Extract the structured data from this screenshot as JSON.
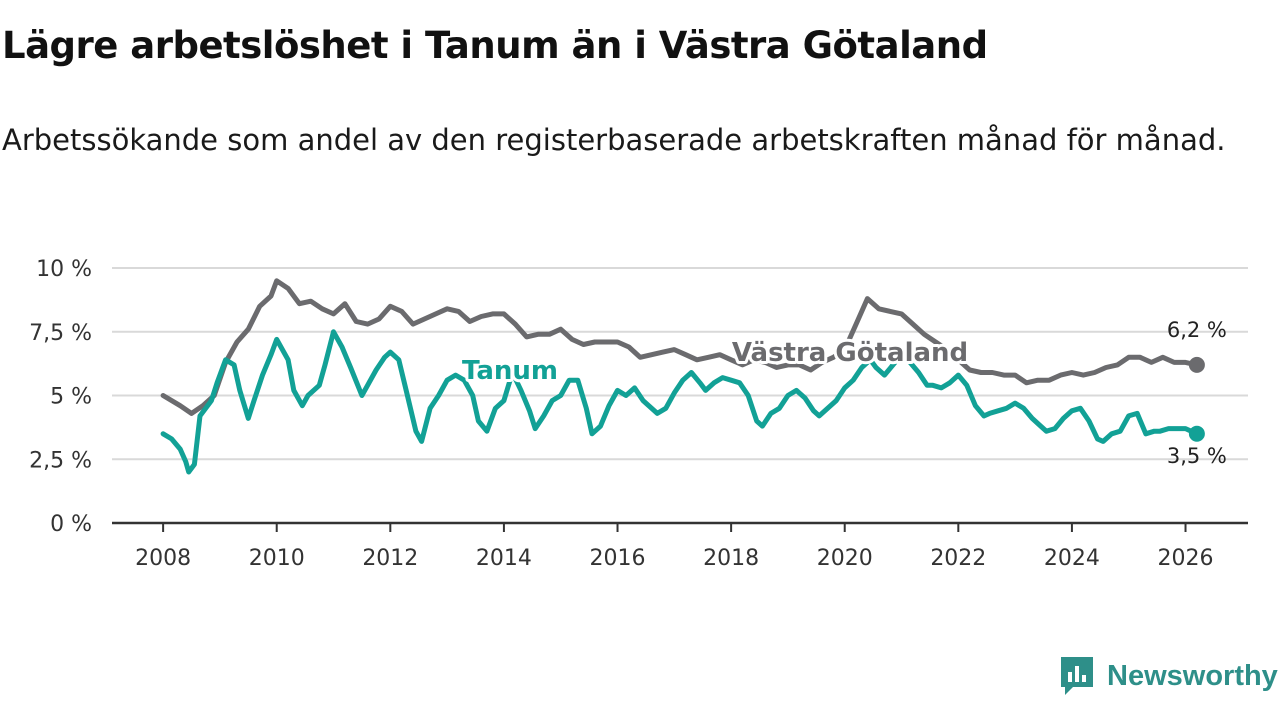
{
  "header": {
    "title": "Lägre arbetslöshet i Tanum än i Västra Götaland",
    "subtitle": "Arbetssökande som andel av den registerbaserade arbetskraften månad för månad."
  },
  "brand": {
    "name": "Newsworthy",
    "color": "#2e8f89"
  },
  "chart_data": {
    "type": "line",
    "title": "Lägre arbetslöshet i Tanum än i Västra Götaland",
    "subtitle": "Arbetssökande som andel av den registerbaserade arbetskraften månad för månad.",
    "xlabel": "",
    "ylabel": "",
    "xlim": [
      2007.1,
      2027.1
    ],
    "ylim": [
      0,
      10
    ],
    "grid": true,
    "x_ticks": [
      2008,
      2010,
      2012,
      2014,
      2016,
      2018,
      2020,
      2022,
      2024,
      2026
    ],
    "x_tick_labels": [
      "2008",
      "2010",
      "2012",
      "2014",
      "2016",
      "2018",
      "2020",
      "2022",
      "2024",
      "2026"
    ],
    "y_ticks": [
      0,
      2.5,
      5,
      7.5,
      10
    ],
    "y_tick_labels": [
      "0 %",
      "2,5 %",
      "5 %",
      "7,5 %",
      "10 %"
    ],
    "series": [
      {
        "name": "Västra Götaland",
        "label": "Västra Götaland",
        "color": "#6b6b6e",
        "end_label": "6,2 %",
        "x": [
          2008.0,
          2008.3,
          2008.5,
          2008.7,
          2008.9,
          2009.1,
          2009.3,
          2009.5,
          2009.7,
          2009.9,
          2010.0,
          2010.2,
          2010.4,
          2010.6,
          2010.8,
          2011.0,
          2011.2,
          2011.4,
          2011.6,
          2011.8,
          2012.0,
          2012.2,
          2012.4,
          2012.6,
          2012.8,
          2013.0,
          2013.2,
          2013.4,
          2013.6,
          2013.8,
          2014.0,
          2014.2,
          2014.4,
          2014.6,
          2014.8,
          2015.0,
          2015.2,
          2015.4,
          2015.6,
          2015.8,
          2016.0,
          2016.2,
          2016.4,
          2016.6,
          2016.8,
          2017.0,
          2017.2,
          2017.4,
          2017.6,
          2017.8,
          2018.0,
          2018.2,
          2018.4,
          2018.6,
          2018.8,
          2019.0,
          2019.2,
          2019.4,
          2019.6,
          2019.8,
          2020.0,
          2020.2,
          2020.4,
          2020.6,
          2020.8,
          2021.0,
          2021.2,
          2021.4,
          2021.6,
          2021.8,
          2022.0,
          2022.2,
          2022.4,
          2022.6,
          2022.8,
          2023.0,
          2023.2,
          2023.4,
          2023.6,
          2023.8,
          2024.0,
          2024.2,
          2024.4,
          2024.6,
          2024.8,
          2025.0,
          2025.2,
          2025.4,
          2025.6,
          2025.8,
          2026.0,
          2026.2
        ],
        "values": [
          5.0,
          4.6,
          4.3,
          4.6,
          5.0,
          6.3,
          7.1,
          7.6,
          8.5,
          8.9,
          9.5,
          9.2,
          8.6,
          8.7,
          8.4,
          8.2,
          8.6,
          7.9,
          7.8,
          8.0,
          8.5,
          8.3,
          7.8,
          8.0,
          8.2,
          8.4,
          8.3,
          7.9,
          8.1,
          8.2,
          8.2,
          7.8,
          7.3,
          7.4,
          7.4,
          7.6,
          7.2,
          7.0,
          7.1,
          7.1,
          7.1,
          6.9,
          6.5,
          6.6,
          6.7,
          6.8,
          6.6,
          6.4,
          6.5,
          6.6,
          6.4,
          6.2,
          6.4,
          6.3,
          6.1,
          6.2,
          6.2,
          6.0,
          6.3,
          6.5,
          6.8,
          7.8,
          8.8,
          8.4,
          8.3,
          8.2,
          7.8,
          7.4,
          7.1,
          6.8,
          6.4,
          6.0,
          5.9,
          5.9,
          5.8,
          5.8,
          5.5,
          5.6,
          5.6,
          5.8,
          5.9,
          5.8,
          5.9,
          6.1,
          6.2,
          6.5,
          6.5,
          6.3,
          6.5,
          6.3,
          6.3,
          6.2
        ]
      },
      {
        "name": "Tanum",
        "label": "Tanum",
        "color": "#12a196",
        "end_label": "3,5 %",
        "x": [
          2008.0,
          2008.15,
          2008.3,
          2008.4,
          2008.45,
          2008.55,
          2008.65,
          2008.85,
          2008.95,
          2009.1,
          2009.25,
          2009.35,
          2009.5,
          2009.6,
          2009.75,
          2009.9,
          2010.0,
          2010.2,
          2010.3,
          2010.45,
          2010.55,
          2010.75,
          2010.85,
          2011.0,
          2011.15,
          2011.3,
          2011.5,
          2011.6,
          2011.75,
          2011.9,
          2012.0,
          2012.15,
          2012.3,
          2012.45,
          2012.55,
          2012.7,
          2012.85,
          2013.0,
          2013.15,
          2013.3,
          2013.45,
          2013.55,
          2013.7,
          2013.85,
          2014.0,
          2014.15,
          2014.3,
          2014.45,
          2014.55,
          2014.7,
          2014.85,
          2015.0,
          2015.15,
          2015.3,
          2015.45,
          2015.55,
          2015.7,
          2015.85,
          2016.0,
          2016.15,
          2016.3,
          2016.45,
          2016.55,
          2016.7,
          2016.85,
          2017.0,
          2017.15,
          2017.3,
          2017.45,
          2017.55,
          2017.7,
          2017.85,
          2018.0,
          2018.15,
          2018.3,
          2018.45,
          2018.55,
          2018.7,
          2018.85,
          2019.0,
          2019.15,
          2019.3,
          2019.45,
          2019.55,
          2019.7,
          2019.85,
          2020.0,
          2020.15,
          2020.3,
          2020.45,
          2020.55,
          2020.7,
          2020.85,
          2021.0,
          2021.15,
          2021.3,
          2021.45,
          2021.55,
          2021.7,
          2021.85,
          2022.0,
          2022.15,
          2022.3,
          2022.45,
          2022.55,
          2022.7,
          2022.85,
          2023.0,
          2023.15,
          2023.3,
          2023.45,
          2023.55,
          2023.7,
          2023.85,
          2024.0,
          2024.15,
          2024.3,
          2024.45,
          2024.55,
          2024.7,
          2024.85,
          2025.0,
          2025.15,
          2025.3,
          2025.45,
          2025.55,
          2025.7,
          2025.85,
          2026.0,
          2026.2
        ],
        "values": [
          3.5,
          3.3,
          2.9,
          2.4,
          2.0,
          2.3,
          4.2,
          4.8,
          5.5,
          6.4,
          6.2,
          5.2,
          4.1,
          4.8,
          5.8,
          6.6,
          7.2,
          6.4,
          5.2,
          4.6,
          5.0,
          5.4,
          6.2,
          7.5,
          6.9,
          6.1,
          5.0,
          5.4,
          6.0,
          6.5,
          6.7,
          6.4,
          5.0,
          3.6,
          3.2,
          4.5,
          5.0,
          5.6,
          5.8,
          5.6,
          5.0,
          4.0,
          3.6,
          4.5,
          4.8,
          5.9,
          5.2,
          4.4,
          3.7,
          4.2,
          4.8,
          5.0,
          5.6,
          5.6,
          4.5,
          3.5,
          3.8,
          4.6,
          5.2,
          5.0,
          5.3,
          4.8,
          4.6,
          4.3,
          4.5,
          5.1,
          5.6,
          5.9,
          5.5,
          5.2,
          5.5,
          5.7,
          5.6,
          5.5,
          5.0,
          4.0,
          3.8,
          4.3,
          4.5,
          5.0,
          5.2,
          4.9,
          4.4,
          4.2,
          4.5,
          4.8,
          5.3,
          5.6,
          6.1,
          6.4,
          6.1,
          5.8,
          6.2,
          6.6,
          6.3,
          5.9,
          5.4,
          5.4,
          5.3,
          5.5,
          5.8,
          5.4,
          4.6,
          4.2,
          4.3,
          4.4,
          4.5,
          4.7,
          4.5,
          4.1,
          3.8,
          3.6,
          3.7,
          4.1,
          4.4,
          4.5,
          4.0,
          3.3,
          3.2,
          3.5,
          3.6,
          4.2,
          4.3,
          3.5,
          3.6,
          3.6,
          3.7,
          3.7,
          3.7,
          3.5
        ]
      }
    ]
  }
}
